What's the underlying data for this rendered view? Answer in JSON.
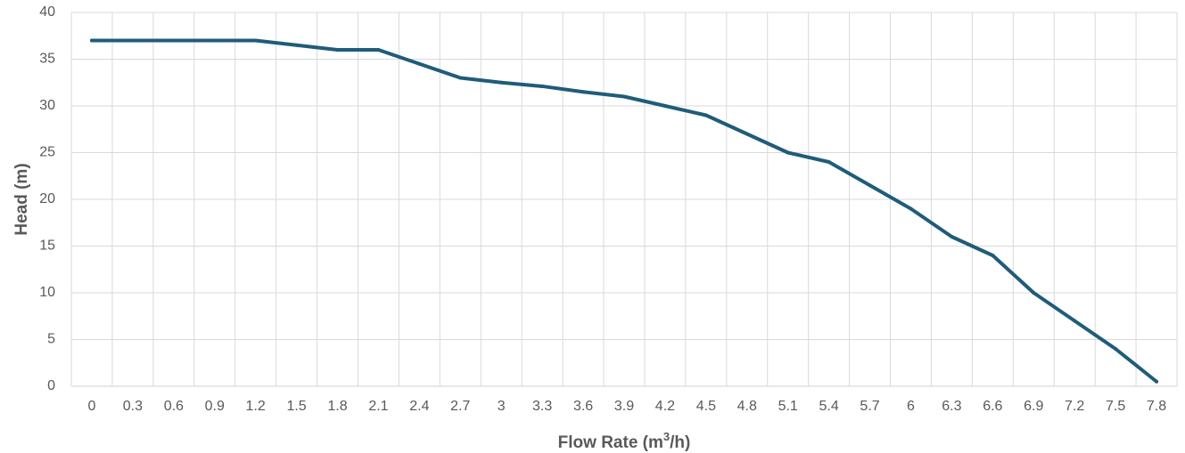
{
  "chart_data": {
    "type": "line",
    "title": "",
    "xlabel": "Flow Rate (m",
    "xlabel_superscript": "3",
    "xlabel_suffix": "/h)",
    "ylabel": "Head (m)",
    "categories": [
      "0",
      "0.3",
      "0.6",
      "0.9",
      "1.2",
      "1.5",
      "1.8",
      "2.1",
      "2.4",
      "2.7",
      "3",
      "3.3",
      "3.6",
      "3.9",
      "4.2",
      "4.5",
      "4.8",
      "5.1",
      "5.4",
      "5.7",
      "6",
      "6.3",
      "6.6",
      "6.9",
      "7.2",
      "7.5",
      "7.8"
    ],
    "series": [
      {
        "values": [
          37,
          37,
          37,
          37,
          37,
          36.5,
          36,
          36,
          34.5,
          33,
          32.5,
          32.1,
          31.5,
          31,
          30,
          29,
          27,
          25,
          24,
          21.5,
          19,
          16,
          14,
          10,
          7,
          4,
          0.5
        ],
        "color": "#1f5c7a"
      }
    ],
    "ylim": [
      0,
      40
    ],
    "y_ticks": [
      0,
      5,
      10,
      15,
      20,
      25,
      30,
      35,
      40
    ],
    "grid": true,
    "legend": "none",
    "colors": {
      "line": "#1f5c7a",
      "grid": "#d9d9d9",
      "text": "#595959"
    }
  }
}
